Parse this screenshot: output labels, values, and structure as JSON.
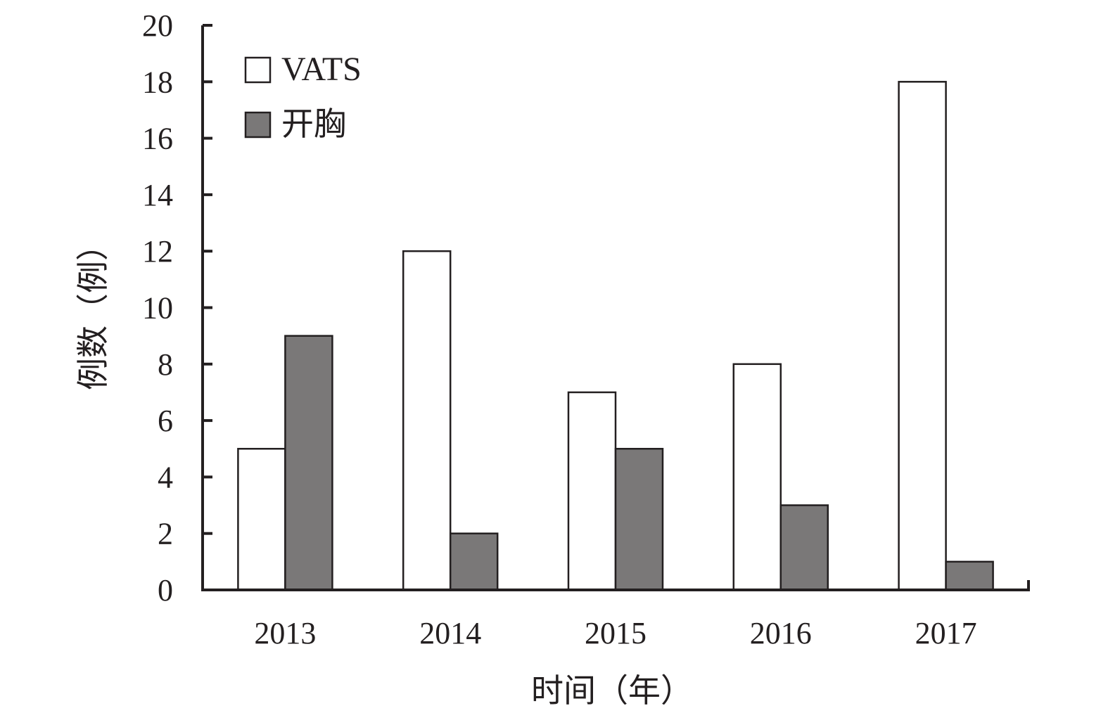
{
  "chart_data": {
    "type": "bar",
    "title": "",
    "xlabel": "时间（年）",
    "ylabel": "例数（例）",
    "categories": [
      "2013",
      "2014",
      "2015",
      "2016",
      "2017"
    ],
    "ylim": [
      0,
      20
    ],
    "yticks": [
      "0",
      "2",
      "4",
      "6",
      "8",
      "10",
      "12",
      "14",
      "16",
      "18",
      "20"
    ],
    "grid": false,
    "legend_position": "top-left",
    "series": [
      {
        "name": "VATS",
        "values": [
          5,
          12,
          7,
          8,
          18
        ],
        "color": "#ffffff"
      },
      {
        "name": "开胸",
        "values": [
          9,
          2,
          5,
          3,
          1
        ],
        "color": "#7a7878"
      }
    ],
    "axis_color": "#231f20"
  }
}
